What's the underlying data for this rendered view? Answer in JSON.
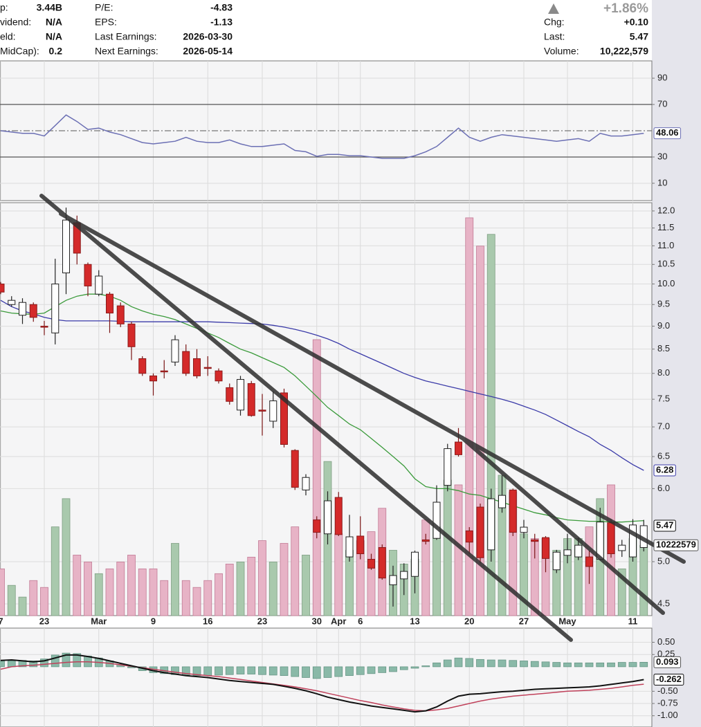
{
  "header": {
    "left": [
      {
        "label": "p:",
        "value": "3.44B"
      },
      {
        "label": "vidend:",
        "value": "N/A"
      },
      {
        "label": "eld:",
        "value": "N/A"
      },
      {
        "label": "MidCap):",
        "value": "0.2"
      }
    ],
    "middle": [
      {
        "label": "P/E:",
        "value": "-4.83"
      },
      {
        "label": "EPS:",
        "value": "-1.13"
      },
      {
        "label": "Last Earnings:",
        "value": "2026-03-30"
      },
      {
        "label": "Next Earnings:",
        "value": "2026-05-14"
      }
    ],
    "right": {
      "change_pct": "+1.86%",
      "rows": [
        {
          "label": "Chg:",
          "value": "+0.10"
        },
        {
          "label": "Last:",
          "value": "5.47"
        },
        {
          "label": "Volume:",
          "value": "10,222,579"
        }
      ]
    }
  },
  "chart_data": [
    {
      "type": "line",
      "ylim": [
        -3.2,
        103.2
      ],
      "yticks": [
        10,
        30,
        70,
        90
      ],
      "grid": true,
      "reference_lines": [
        {
          "value": 70,
          "style": "solid"
        },
        {
          "value": 30,
          "style": "solid"
        },
        {
          "value": 50,
          "style": "dashdot"
        }
      ],
      "series": [
        {
          "color": "#6b6fb4",
          "values": [
            50,
            49,
            48,
            48,
            46,
            54,
            62,
            57,
            51,
            52,
            49,
            47,
            44,
            41,
            40,
            41,
            42,
            45,
            42,
            41,
            41,
            43,
            40,
            38,
            38,
            39,
            40,
            35,
            34,
            30.5,
            32,
            32,
            31,
            31,
            30,
            29,
            29,
            29,
            31,
            34,
            38,
            45,
            52,
            45,
            42,
            45,
            47,
            46,
            45,
            44,
            43,
            42,
            43,
            44,
            42,
            48,
            46,
            46,
            47,
            48.06
          ]
        }
      ]
    },
    {
      "type": "candlestick",
      "categories": [
        "7",
        null,
        null,
        null,
        "23",
        null,
        null,
        null,
        null,
        "Mar",
        null,
        null,
        null,
        null,
        "9",
        null,
        null,
        null,
        null,
        "16",
        null,
        null,
        null,
        null,
        "23",
        null,
        null,
        null,
        null,
        "30",
        null,
        "Apr",
        null,
        "6",
        null,
        null,
        null,
        null,
        "13",
        null,
        null,
        null,
        null,
        "20",
        null,
        null,
        null,
        null,
        "27",
        null,
        null,
        null,
        "May",
        null,
        null,
        null,
        null,
        null,
        "11",
        null
      ],
      "open": [
        10.0,
        9.5,
        9.25,
        9.5,
        9.0,
        8.85,
        10.28,
        11.65,
        10.5,
        9.75,
        9.75,
        9.47,
        9.05,
        8.3,
        7.95,
        8.05,
        8.23,
        8.45,
        8.3,
        8.12,
        8.05,
        7.72,
        7.3,
        7.8,
        7.3,
        7.1,
        7.62,
        6.6,
        5.98,
        5.55,
        5.36,
        5.87,
        5.06,
        5.33,
        5.03,
        5.18,
        4.72,
        4.79,
        4.82,
        5.28,
        5.3,
        6.05,
        6.74,
        5.4,
        5.73,
        5.15,
        5.72,
        5.98,
        5.38,
        5.28,
        5.31,
        4.9,
        5.08,
        5.06,
        5.06,
        5.03,
        5.51,
        5.14,
        5.06,
        5.18
      ],
      "high": [
        10.05,
        9.7,
        9.65,
        9.55,
        9.12,
        10.65,
        12.1,
        11.86,
        10.55,
        10.35,
        9.8,
        9.55,
        9.1,
        8.35,
        8.0,
        8.27,
        8.8,
        8.6,
        8.5,
        8.35,
        8.1,
        7.8,
        7.95,
        7.85,
        7.6,
        7.65,
        7.7,
        6.62,
        6.22,
        5.6,
        5.96,
        5.95,
        5.62,
        5.6,
        5.1,
        5.22,
        4.95,
        4.98,
        5.14,
        5.36,
        6.05,
        6.71,
        6.98,
        5.45,
        5.78,
        6.0,
        6.2,
        6.0,
        5.55,
        5.36,
        5.33,
        5.15,
        5.36,
        5.31,
        5.14,
        5.72,
        5.56,
        5.28,
        5.56,
        5.55
      ],
      "low": [
        9.75,
        9.45,
        9.05,
        9.1,
        8.8,
        8.6,
        9.75,
        10.5,
        9.7,
        9.7,
        8.85,
        8.98,
        8.27,
        7.95,
        7.57,
        7.9,
        8.15,
        7.95,
        7.9,
        7.95,
        7.8,
        7.4,
        7.2,
        7.18,
        6.85,
        6.98,
        6.65,
        5.98,
        5.9,
        5.3,
        5.22,
        5.33,
        5.0,
        5.03,
        4.9,
        4.78,
        4.47,
        4.6,
        4.62,
        5.22,
        5.28,
        5.96,
        6.5,
        5.1,
        4.98,
        5.0,
        5.65,
        5.33,
        5.3,
        5.04,
        4.87,
        4.86,
        4.98,
        5.02,
        4.73,
        5.02,
        5.05,
        5.06,
        5.0,
        5.13
      ],
      "close": [
        9.8,
        9.6,
        9.55,
        9.2,
        8.98,
        10.0,
        11.73,
        10.8,
        9.95,
        10.2,
        9.3,
        9.05,
        8.55,
        8.0,
        7.85,
        8.03,
        8.7,
        8.0,
        7.95,
        8.1,
        7.85,
        7.46,
        7.88,
        7.2,
        7.28,
        7.47,
        6.7,
        6.02,
        6.17,
        5.38,
        5.82,
        5.35,
        5.32,
        5.1,
        4.92,
        4.8,
        4.83,
        4.88,
        5.12,
        5.26,
        5.8,
        6.63,
        6.53,
        5.25,
        5.05,
        5.85,
        5.9,
        5.38,
        5.45,
        5.26,
        5.04,
        5.12,
        5.15,
        5.21,
        4.94,
        5.52,
        5.1,
        5.21,
        5.48,
        5.47
      ],
      "up_color": "#ffffff",
      "down_color": "#d42a2a",
      "ylim": [
        4.37,
        12.25
      ],
      "log_scale": true,
      "grid": true,
      "yticks": [
        {
          "value": 12,
          "label": "12.0"
        },
        11.5,
        {
          "value": 11,
          "label": "11.0"
        },
        10.5,
        {
          "value": 10,
          "label": "10.0"
        },
        9.5,
        {
          "value": 9,
          "label": "9.0"
        },
        8.5,
        {
          "value": 8,
          "label": "8.0"
        },
        7.5,
        {
          "value": 7,
          "label": "7.0"
        },
        6.5,
        {
          "value": 6,
          "label": "6.0"
        },
        {
          "value": 5,
          "label": "5.0"
        },
        4.5
      ],
      "series": [
        {
          "color": "#3a9a3a",
          "values": [
            9.35,
            9.3,
            9.28,
            9.27,
            9.3,
            9.45,
            9.6,
            9.7,
            9.75,
            9.75,
            9.7,
            9.6,
            9.45,
            9.35,
            9.27,
            9.22,
            9.15,
            9.05,
            8.95,
            8.85,
            8.75,
            8.62,
            8.5,
            8.42,
            8.32,
            8.22,
            8.12,
            7.95,
            7.75,
            7.55,
            7.35,
            7.2,
            7.05,
            6.95,
            6.8,
            6.65,
            6.5,
            6.35,
            6.15,
            6.03,
            6.0,
            6.0,
            5.97,
            5.92,
            5.9,
            5.85,
            5.8,
            5.75,
            5.7,
            5.65,
            5.62,
            5.58,
            5.55,
            5.54,
            5.53,
            5.53,
            5.52,
            5.52,
            5.53,
            5.54
          ]
        },
        {
          "color": "#3a3aa8",
          "values": [
            9.6,
            9.45,
            9.35,
            9.28,
            9.2,
            9.15,
            9.12,
            9.12,
            9.12,
            9.12,
            9.12,
            9.11,
            9.1,
            9.1,
            9.1,
            9.1,
            9.1,
            9.1,
            9.1,
            9.1,
            9.09,
            9.08,
            9.07,
            9.06,
            9.05,
            9.02,
            8.98,
            8.93,
            8.87,
            8.8,
            8.72,
            8.62,
            8.5,
            8.4,
            8.3,
            8.2,
            8.1,
            8.0,
            7.92,
            7.85,
            7.8,
            7.75,
            7.7,
            7.65,
            7.6,
            7.55,
            7.5,
            7.44,
            7.37,
            7.3,
            7.22,
            7.12,
            7.02,
            6.92,
            6.83,
            6.7,
            6.6,
            6.48,
            6.37,
            6.28
          ]
        }
      ],
      "volume": {
        "ylim": [
          0,
          60000000
        ],
        "up_color": "#a9c9ad",
        "down_color": "#e7b3c6",
        "values": [
          6800000,
          4400000,
          2700000,
          5100000,
          4100000,
          12900000,
          17000000,
          8800000,
          7800000,
          6100000,
          6800000,
          7800000,
          8800000,
          6800000,
          6800000,
          5100000,
          10500000,
          5100000,
          4100000,
          5100000,
          6100000,
          7500000,
          7800000,
          8500000,
          10900000,
          7800000,
          10500000,
          12900000,
          8800000,
          40100000,
          22400000,
          11900000,
          9500000,
          10900000,
          12200000,
          15600000,
          9500000,
          7500000,
          8200000,
          13900000,
          12900000,
          19700000,
          19000000,
          57800000,
          53700000,
          55400000,
          20400000,
          18000000,
          11900000,
          11200000,
          11200000,
          9500000,
          11200000,
          11200000,
          12900000,
          17000000,
          19000000,
          6800000,
          11200000,
          10222579
        ]
      }
    },
    {
      "type": "macd",
      "ylim": [
        -1.23,
        0.79
      ],
      "grid": true,
      "yticks": [
        {
          "value": 0.5,
          "label": "0.50"
        },
        {
          "value": 0.25,
          "label": "0.25"
        },
        {
          "value": -0.5,
          "label": "-0.50"
        },
        {
          "value": -0.75,
          "label": "-0.75"
        },
        {
          "value": -1,
          "label": "-1.00"
        }
      ],
      "histogram": {
        "color": "#8ab9a8",
        "values": [
          0.12,
          0.12,
          0.13,
          0.12,
          0.16,
          0.24,
          0.28,
          0.27,
          0.22,
          0.18,
          0.12,
          0.05,
          -0.02,
          -0.08,
          -0.12,
          -0.14,
          -0.16,
          -0.17,
          -0.18,
          -0.18,
          -0.17,
          -0.16,
          -0.15,
          -0.15,
          -0.16,
          -0.17,
          -0.18,
          -0.2,
          -0.22,
          -0.24,
          -0.22,
          -0.2,
          -0.18,
          -0.16,
          -0.14,
          -0.12,
          -0.1,
          -0.06,
          -0.03,
          0.02,
          0.08,
          0.14,
          0.18,
          0.17,
          0.15,
          0.14,
          0.14,
          0.13,
          0.12,
          0.11,
          0.1,
          0.09,
          0.08,
          0.08,
          0.08,
          0.08,
          0.08,
          0.09,
          0.09,
          0.093
        ]
      },
      "macd": {
        "color": "#111111",
        "values": [
          0.13,
          0.14,
          0.12,
          0.1,
          0.12,
          0.18,
          0.24,
          0.24,
          0.21,
          0.17,
          0.12,
          0.07,
          0.02,
          -0.03,
          -0.08,
          -0.12,
          -0.15,
          -0.18,
          -0.2,
          -0.22,
          -0.25,
          -0.28,
          -0.3,
          -0.32,
          -0.34,
          -0.36,
          -0.4,
          -0.44,
          -0.49,
          -0.55,
          -0.62,
          -0.67,
          -0.72,
          -0.76,
          -0.8,
          -0.83,
          -0.86,
          -0.89,
          -0.92,
          -0.9,
          -0.82,
          -0.7,
          -0.6,
          -0.56,
          -0.55,
          -0.53,
          -0.51,
          -0.5,
          -0.48,
          -0.46,
          -0.45,
          -0.44,
          -0.43,
          -0.42,
          -0.41,
          -0.39,
          -0.36,
          -0.33,
          -0.3,
          -0.262
        ]
      },
      "signal": {
        "color": "#c0405a",
        "values": [
          -0.05,
          0.0,
          0.02,
          0.03,
          0.05,
          0.07,
          0.09,
          0.1,
          0.1,
          0.09,
          0.07,
          0.04,
          0.01,
          -0.02,
          -0.05,
          -0.08,
          -0.11,
          -0.14,
          -0.16,
          -0.18,
          -0.2,
          -0.23,
          -0.26,
          -0.29,
          -0.32,
          -0.35,
          -0.38,
          -0.41,
          -0.45,
          -0.49,
          -0.54,
          -0.59,
          -0.64,
          -0.69,
          -0.73,
          -0.78,
          -0.82,
          -0.86,
          -0.89,
          -0.9,
          -0.88,
          -0.85,
          -0.8,
          -0.75,
          -0.7,
          -0.66,
          -0.63,
          -0.6,
          -0.58,
          -0.56,
          -0.54,
          -0.52,
          -0.5,
          -0.49,
          -0.48,
          -0.46,
          -0.44,
          -0.41,
          -0.38,
          -0.355
        ]
      }
    }
  ]
}
